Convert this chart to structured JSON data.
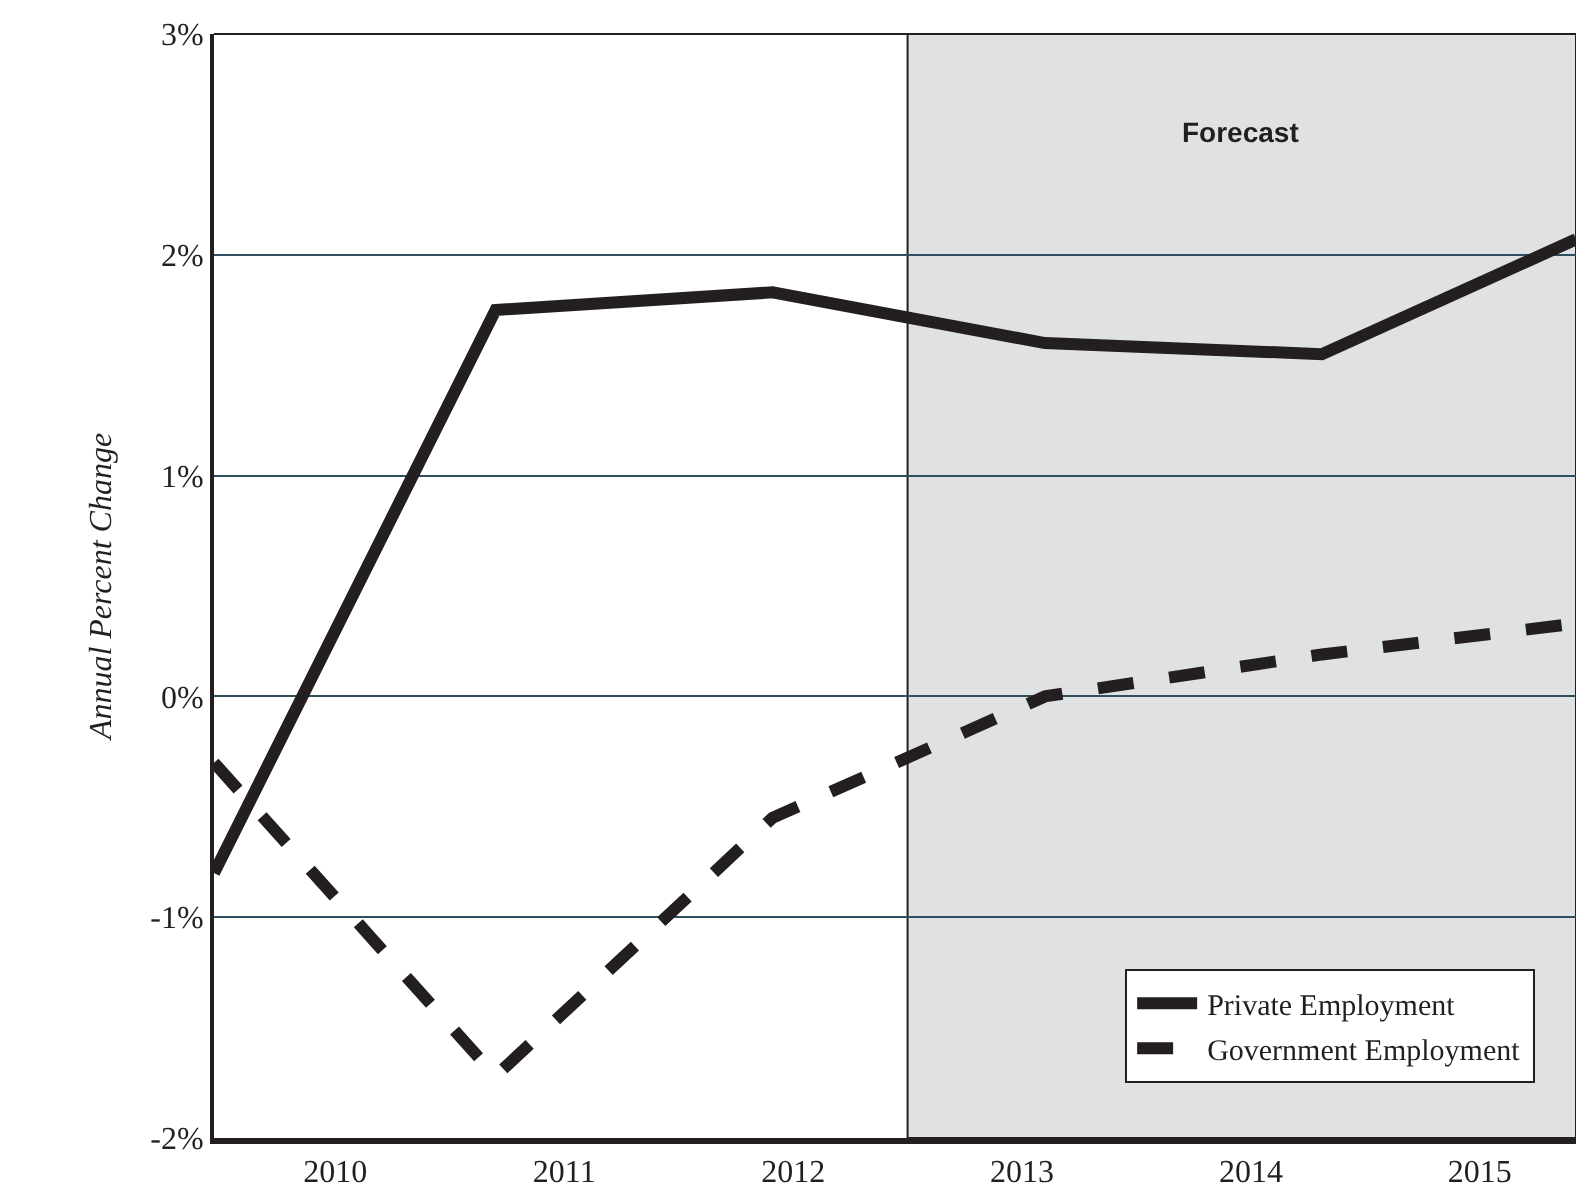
{
  "chart_data": {
    "type": "line",
    "ylabel": "Annual Percent Change",
    "xlim": [
      2009.47,
      2015.42
    ],
    "xticks": [
      2010,
      2011,
      2012,
      2013,
      2014,
      2015
    ],
    "ylim": [
      -2,
      3
    ],
    "yticks": [
      {
        "value": -2,
        "label": "-2%"
      },
      {
        "value": -1,
        "label": "-1%"
      },
      {
        "value": 0,
        "label": "0%"
      },
      {
        "value": 1,
        "label": "1%"
      },
      {
        "value": 2,
        "label": "2%"
      },
      {
        "value": 3,
        "label": "3%"
      }
    ],
    "grid": "y",
    "legend": "bottom right",
    "marker": "none",
    "bands": [
      {
        "axis": "x",
        "from": 2012.5,
        "to": 2015.42,
        "label": "Forecast",
        "color": "#e0e1e3"
      }
    ],
    "series": [
      {
        "name": "Private Employment",
        "color": "#231f20",
        "line_style": "solid",
        "x": [
          2009.47,
          2010.7,
          2011.91,
          2013.1,
          2014.31,
          2015.42
        ],
        "values": [
          -0.8,
          1.75,
          1.83,
          1.6,
          1.55,
          2.07
        ]
      },
      {
        "name": "Government Employment",
        "color": "#231f20",
        "line_style": "dashed",
        "x": [
          2009.47,
          2010.7,
          2011.91,
          2013.1,
          2014.31,
          2015.42
        ],
        "values": [
          -0.3,
          -1.72,
          -0.55,
          0.0,
          0.19,
          0.33
        ]
      }
    ]
  }
}
